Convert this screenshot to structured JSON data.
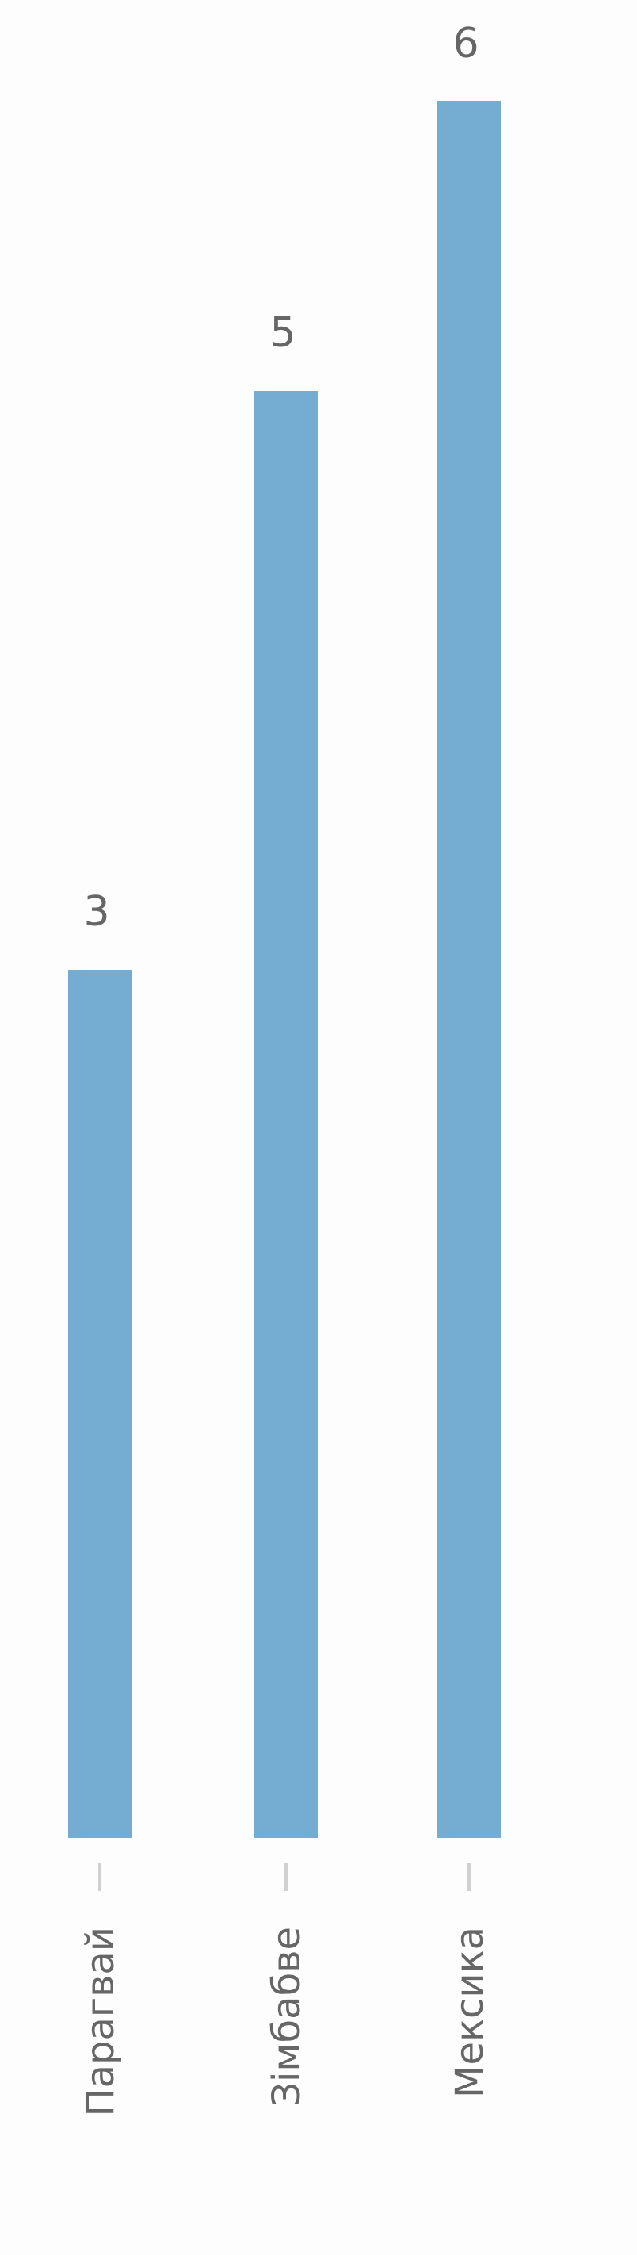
{
  "chart_data": {
    "type": "bar",
    "categories": [
      "Парагвай",
      "Зімбабве",
      "Мексика"
    ],
    "values": [
      3,
      5,
      6
    ],
    "title": "",
    "xlabel": "",
    "ylabel": "",
    "ylim": [
      0,
      6
    ],
    "grid": false,
    "legend": "none",
    "data_labels": true
  },
  "colors": {
    "bar": "#75add2",
    "text": "#666666",
    "tick": "#d0d0d0",
    "background": "#fdfdfd"
  }
}
